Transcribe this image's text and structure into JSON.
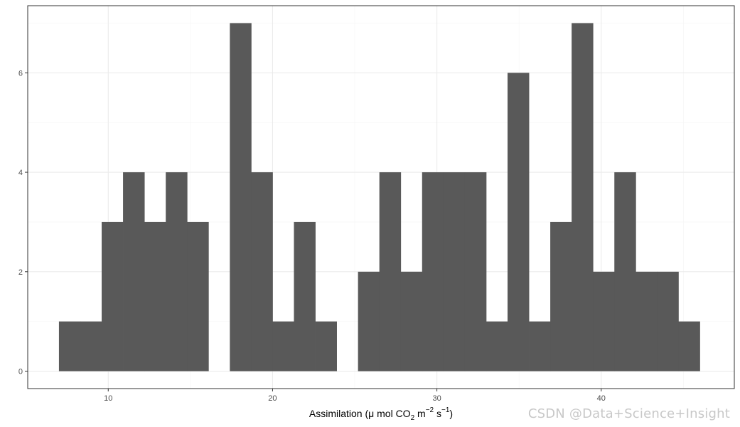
{
  "chart_data": {
    "type": "bar",
    "subtype": "histogram",
    "title": "",
    "xlabel": {
      "prefix": "Assimilation (",
      "mu": "μ",
      "mid": " mol CO",
      "sub": "2",
      "m": " m",
      "sup1": "−2",
      "s": " s",
      "sup2": "−1",
      "suffix": ")"
    },
    "ylabel": "",
    "x_ticks": [
      "10",
      "20",
      "30",
      "40"
    ],
    "x_tick_values": [
      10,
      20,
      30,
      40
    ],
    "y_ticks": [
      "0",
      "2",
      "4",
      "6"
    ],
    "y_tick_values": [
      0,
      2,
      4,
      6
    ],
    "xlim": [
      5.1,
      48.1
    ],
    "ylim": [
      -0.35,
      7.35
    ],
    "bin_width": 1.3,
    "bins": [
      {
        "x0": 7.0,
        "x1": 8.3,
        "count": 1
      },
      {
        "x0": 8.3,
        "x1": 9.6,
        "count": 1
      },
      {
        "x0": 9.6,
        "x1": 10.9,
        "count": 3
      },
      {
        "x0": 10.9,
        "x1": 12.2,
        "count": 4
      },
      {
        "x0": 12.2,
        "x1": 13.5,
        "count": 3
      },
      {
        "x0": 13.5,
        "x1": 14.8,
        "count": 4
      },
      {
        "x0": 14.8,
        "x1": 16.1,
        "count": 3
      },
      {
        "x0": 16.1,
        "x1": 17.4,
        "count": 0
      },
      {
        "x0": 17.4,
        "x1": 18.7,
        "count": 7
      },
      {
        "x0": 18.7,
        "x1": 20.0,
        "count": 4
      },
      {
        "x0": 20.0,
        "x1": 21.3,
        "count": 1
      },
      {
        "x0": 21.3,
        "x1": 22.6,
        "count": 3
      },
      {
        "x0": 22.6,
        "x1": 23.9,
        "count": 1
      },
      {
        "x0": 23.9,
        "x1": 25.2,
        "count": 0
      },
      {
        "x0": 25.2,
        "x1": 26.5,
        "count": 2
      },
      {
        "x0": 26.5,
        "x1": 27.8,
        "count": 4
      },
      {
        "x0": 27.8,
        "x1": 29.1,
        "count": 2
      },
      {
        "x0": 29.1,
        "x1": 30.4,
        "count": 4
      },
      {
        "x0": 30.4,
        "x1": 31.7,
        "count": 4
      },
      {
        "x0": 31.7,
        "x1": 33.0,
        "count": 4
      },
      {
        "x0": 33.0,
        "x1": 34.3,
        "count": 1
      },
      {
        "x0": 34.3,
        "x1": 35.6,
        "count": 6
      },
      {
        "x0": 35.6,
        "x1": 36.9,
        "count": 1
      },
      {
        "x0": 36.9,
        "x1": 38.2,
        "count": 3
      },
      {
        "x0": 38.2,
        "x1": 39.5,
        "count": 7
      },
      {
        "x0": 39.5,
        "x1": 40.8,
        "count": 2
      },
      {
        "x0": 40.8,
        "x1": 42.1,
        "count": 4
      },
      {
        "x0": 42.1,
        "x1": 43.4,
        "count": 2
      },
      {
        "x0": 43.4,
        "x1": 44.7,
        "count": 2
      },
      {
        "x0": 44.7,
        "x1": 46.0,
        "count": 1
      }
    ],
    "grid": true,
    "legend": "none",
    "colors": {
      "bar": "#595959",
      "grid_major": "#ebebeb",
      "grid_minor": "#f5f5f5",
      "panel_border": "#333333",
      "tick": "#333333"
    }
  },
  "watermark": "CSDN @Data+Science+Insight"
}
